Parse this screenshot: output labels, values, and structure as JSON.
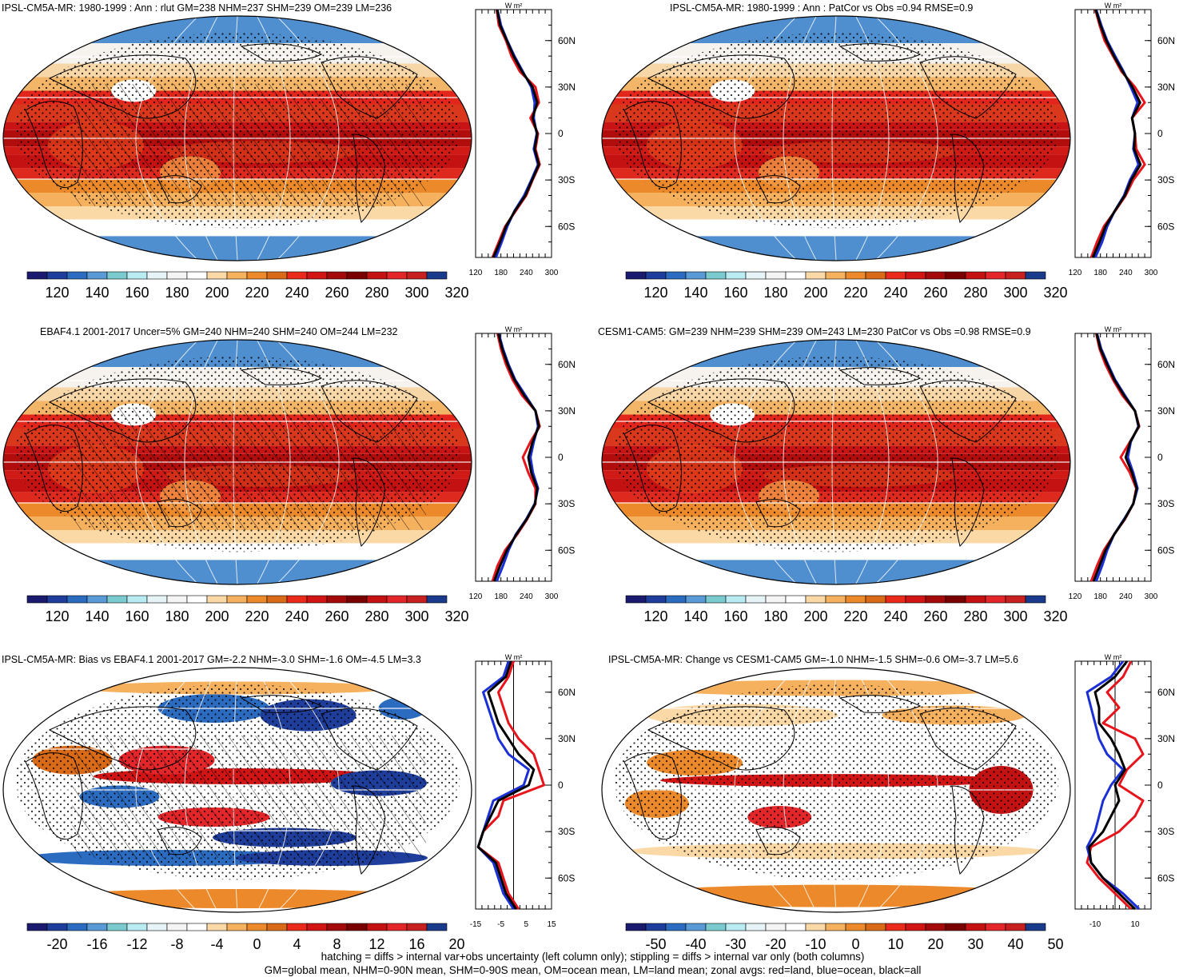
{
  "figure": {
    "footer_line1": "hatching = diffs > internal var+obs uncertainty (left column only); stippling = diffs > internal var only (both columns)",
    "footer_line2": "GM=global mean, NHM=0-90N mean, SHM=0-90S mean, OM=ocean mean, LM=land mean; zonal avgs: red=land, blue=ocean, black=all"
  },
  "colors": {
    "land": "#e8141c",
    "ocean": "#1a2fd6",
    "all": "#000000",
    "abs_palette": [
      "#1a1a6e",
      "#1f3e9c",
      "#2c6cc0",
      "#5a9ad6",
      "#7bcad0",
      "#b8ecf2",
      "#e6f4f8",
      "#f4f4f4",
      "#ffffff",
      "#fbd9a6",
      "#f6b15f",
      "#ec8a2b",
      "#d96a17",
      "#ea2b1c",
      "#d11414",
      "#a50a0a",
      "#7a0000",
      "#c41212",
      "#e3262a",
      "#c62020",
      "#1a3a8c"
    ],
    "diff_palette": [
      "#1a1a6e",
      "#1f3e9c",
      "#2c6cc0",
      "#5a9ad6",
      "#7bcad0",
      "#b8ecf2",
      "#e6f4f8",
      "#f4f4f4",
      "#ffffff",
      "#fbd9a6",
      "#f6b15f",
      "#ec8a2b",
      "#d96a17",
      "#ea2b1c",
      "#d11414",
      "#a50a0a",
      "#7a0000",
      "#c41212",
      "#e3262a",
      "#c62020",
      "#1a3a8c"
    ]
  },
  "chart_data": [
    {
      "type": "map+zonal",
      "title": "IPSL-CM5A-MR: 1980-1999 : Ann : rlut GM=238 NHM=237 SHM=239 OM=239 LM=236",
      "field": "abs",
      "hatched": true,
      "colorbar_ticks": [
        "120",
        "140",
        "160",
        "180",
        "200",
        "220",
        "240",
        "260",
        "280",
        "300",
        "320"
      ],
      "zonal": {
        "units": "W m²",
        "xticks": [
          "120",
          "180",
          "240",
          "300"
        ],
        "xlim": [
          120,
          300
        ],
        "yticks": [
          "60N",
          "30N",
          "0",
          "30S",
          "60S"
        ],
        "lat": [
          80,
          70,
          60,
          50,
          40,
          30,
          20,
          10,
          0,
          -10,
          -20,
          -30,
          -40,
          -50,
          -60,
          -70,
          -80
        ],
        "land": [
          170,
          175,
          192,
          205,
          225,
          262,
          270,
          250,
          268,
          262,
          272,
          255,
          240,
          215,
          190,
          175,
          160
        ],
        "ocean": [
          172,
          180,
          195,
          212,
          232,
          252,
          260,
          258,
          265,
          258,
          268,
          252,
          235,
          212,
          195,
          182,
          168
        ],
        "all": [
          171,
          178,
          194,
          210,
          230,
          255,
          266,
          255,
          266,
          260,
          270,
          254,
          238,
          213,
          192,
          178,
          162
        ]
      }
    },
    {
      "type": "map+zonal",
      "title": "IPSL-CM5A-MR: 1980-1999 : Ann : PatCor vs Obs =0.94 RMSE=0.9",
      "field": "abs",
      "hatched": false,
      "colorbar_ticks": [
        "120",
        "140",
        "160",
        "180",
        "200",
        "220",
        "240",
        "260",
        "280",
        "300",
        "320"
      ],
      "zonal": {
        "units": "W m²",
        "xticks": [
          "120",
          "180",
          "240",
          "300"
        ],
        "xlim": [
          120,
          300
        ],
        "yticks": [
          "60N",
          "30N",
          "0",
          "30S",
          "60S"
        ],
        "lat": [
          80,
          70,
          60,
          50,
          40,
          30,
          20,
          10,
          0,
          -10,
          -20,
          -30,
          -40,
          -50,
          -60,
          -70,
          -80
        ],
        "land": [
          168,
          178,
          190,
          210,
          230,
          262,
          285,
          255,
          262,
          265,
          285,
          258,
          240,
          215,
          188,
          172,
          158
        ],
        "ocean": [
          170,
          182,
          196,
          215,
          235,
          252,
          268,
          255,
          262,
          258,
          270,
          250,
          236,
          214,
          196,
          184,
          168
        ],
        "all": [
          169,
          180,
          194,
          212,
          233,
          256,
          274,
          255,
          262,
          260,
          275,
          253,
          238,
          214,
          192,
          178,
          162
        ]
      }
    },
    {
      "type": "map+zonal",
      "title": "EBAF4.1 2001-2017 Uncer=5% GM=240 NHM=240 SHM=240 OM=244 LM=232",
      "field": "abs",
      "hatched": true,
      "colorbar_ticks": [
        "120",
        "140",
        "160",
        "180",
        "200",
        "220",
        "240",
        "260",
        "280",
        "300",
        "320"
      ],
      "zonal": {
        "units": "W m²",
        "xticks": [
          "120",
          "180",
          "240",
          "300"
        ],
        "xlim": [
          120,
          300
        ],
        "yticks": [
          "60N",
          "30N",
          "0",
          "30S",
          "60S"
        ],
        "lat": [
          80,
          70,
          60,
          50,
          40,
          30,
          20,
          10,
          0,
          -10,
          -20,
          -30,
          -40,
          -50,
          -60,
          -70,
          -80
        ],
        "land": [
          172,
          180,
          192,
          208,
          230,
          262,
          272,
          250,
          232,
          245,
          262,
          262,
          242,
          218,
          190,
          172,
          160
        ],
        "ocean": [
          175,
          185,
          198,
          214,
          238,
          262,
          268,
          258,
          250,
          256,
          268,
          260,
          240,
          215,
          198,
          185,
          170
        ],
        "all": [
          174,
          183,
          196,
          212,
          235,
          262,
          270,
          255,
          245,
          252,
          266,
          261,
          241,
          216,
          194,
          178,
          164
        ]
      }
    },
    {
      "type": "map+zonal",
      "title": "CESM1-CAM5: GM=239 NHM=239 SHM=239 OM=243 LM=230 PatCor vs Obs =0.98 RMSE=0.9",
      "field": "abs",
      "hatched": false,
      "colorbar_ticks": [
        "120",
        "140",
        "160",
        "180",
        "200",
        "220",
        "240",
        "260",
        "280",
        "300",
        "320"
      ],
      "zonal": {
        "units": "W m²",
        "xticks": [
          "120",
          "180",
          "240",
          "300"
        ],
        "xlim": [
          120,
          300
        ],
        "yticks": [
          "60N",
          "30N",
          "0",
          "30S",
          "60S"
        ],
        "lat": [
          80,
          70,
          60,
          50,
          40,
          30,
          20,
          10,
          0,
          -10,
          -20,
          -30,
          -40,
          -50,
          -60,
          -70,
          -80
        ],
        "land": [
          170,
          178,
          192,
          210,
          232,
          262,
          272,
          250,
          228,
          250,
          265,
          258,
          238,
          212,
          188,
          172,
          158
        ],
        "ocean": [
          172,
          182,
          198,
          215,
          238,
          262,
          270,
          252,
          245,
          258,
          268,
          258,
          236,
          212,
          196,
          184,
          170
        ],
        "all": [
          171,
          180,
          196,
          213,
          236,
          262,
          271,
          251,
          240,
          255,
          266,
          258,
          237,
          212,
          192,
          178,
          164
        ]
      }
    },
    {
      "type": "map+zonal",
      "title": "IPSL-CM5A-MR: Bias vs EBAF4.1 2001-2017 GM=-2.2 NHM=-3.0 SHM=-1.6 OM=-4.5 LM=3.3",
      "field": "diff",
      "hatched": true,
      "colorbar_ticks": [
        "-20",
        "-16",
        "-12",
        "-8",
        "-4",
        "0",
        "4",
        "8",
        "12",
        "16",
        "20"
      ],
      "zonal": {
        "units": "W m²",
        "xticks": [
          "-15",
          "-5",
          "5",
          "15"
        ],
        "xlim": [
          -15,
          15
        ],
        "yticks": [
          "60N",
          "30N",
          "0",
          "30S",
          "60S"
        ],
        "lat": [
          80,
          70,
          60,
          50,
          40,
          30,
          20,
          10,
          0,
          -10,
          -20,
          -30,
          -40,
          -50,
          -60,
          -70,
          -80
        ],
        "land": [
          0,
          -2,
          -6,
          -4,
          -2,
          2,
          8,
          10,
          12,
          -4,
          -6,
          -12,
          -14,
          -6,
          -4,
          -2,
          2
        ],
        "ocean": [
          -2,
          -4,
          -12,
          -10,
          -8,
          -6,
          -2,
          6,
          4,
          -8,
          -10,
          -12,
          -14,
          -8,
          -6,
          -4,
          0
        ],
        "all": [
          -1,
          -3,
          -10,
          -8,
          -6,
          -2,
          2,
          8,
          6,
          -6,
          -9,
          -12,
          -14,
          -7,
          -5,
          -3,
          1
        ]
      }
    },
    {
      "type": "map+zonal",
      "title": "IPSL-CM5A-MR: Change vs CESM1-CAM5 GM=-1.0 NHM=-1.5 SHM=-0.6 OM=-3.7 LM=5.6",
      "field": "diff2",
      "hatched": false,
      "colorbar_ticks": [
        "-50",
        "-40",
        "-30",
        "-20",
        "-10",
        "0",
        "10",
        "20",
        "30",
        "40",
        "50"
      ],
      "zonal": {
        "units": "W m²",
        "xticks": [
          "-10",
          "10"
        ],
        "xlim": [
          -20,
          18
        ],
        "yticks": [
          "60N",
          "30N",
          "0",
          "30S",
          "60S"
        ],
        "lat": [
          80,
          70,
          60,
          50,
          40,
          30,
          20,
          10,
          0,
          -10,
          -20,
          -30,
          -40,
          -50,
          -60,
          -70,
          -80
        ],
        "land": [
          8,
          4,
          -4,
          2,
          -6,
          10,
          14,
          6,
          2,
          14,
          10,
          2,
          -12,
          -14,
          -8,
          0,
          8
        ],
        "ocean": [
          4,
          -2,
          -14,
          -12,
          -10,
          -8,
          -4,
          4,
          -2,
          -6,
          -8,
          -10,
          -14,
          -12,
          -6,
          4,
          12
        ],
        "all": [
          6,
          0,
          -10,
          -8,
          -8,
          -2,
          2,
          5,
          0,
          2,
          -2,
          -6,
          -13,
          -12,
          -6,
          2,
          10
        ]
      }
    }
  ]
}
